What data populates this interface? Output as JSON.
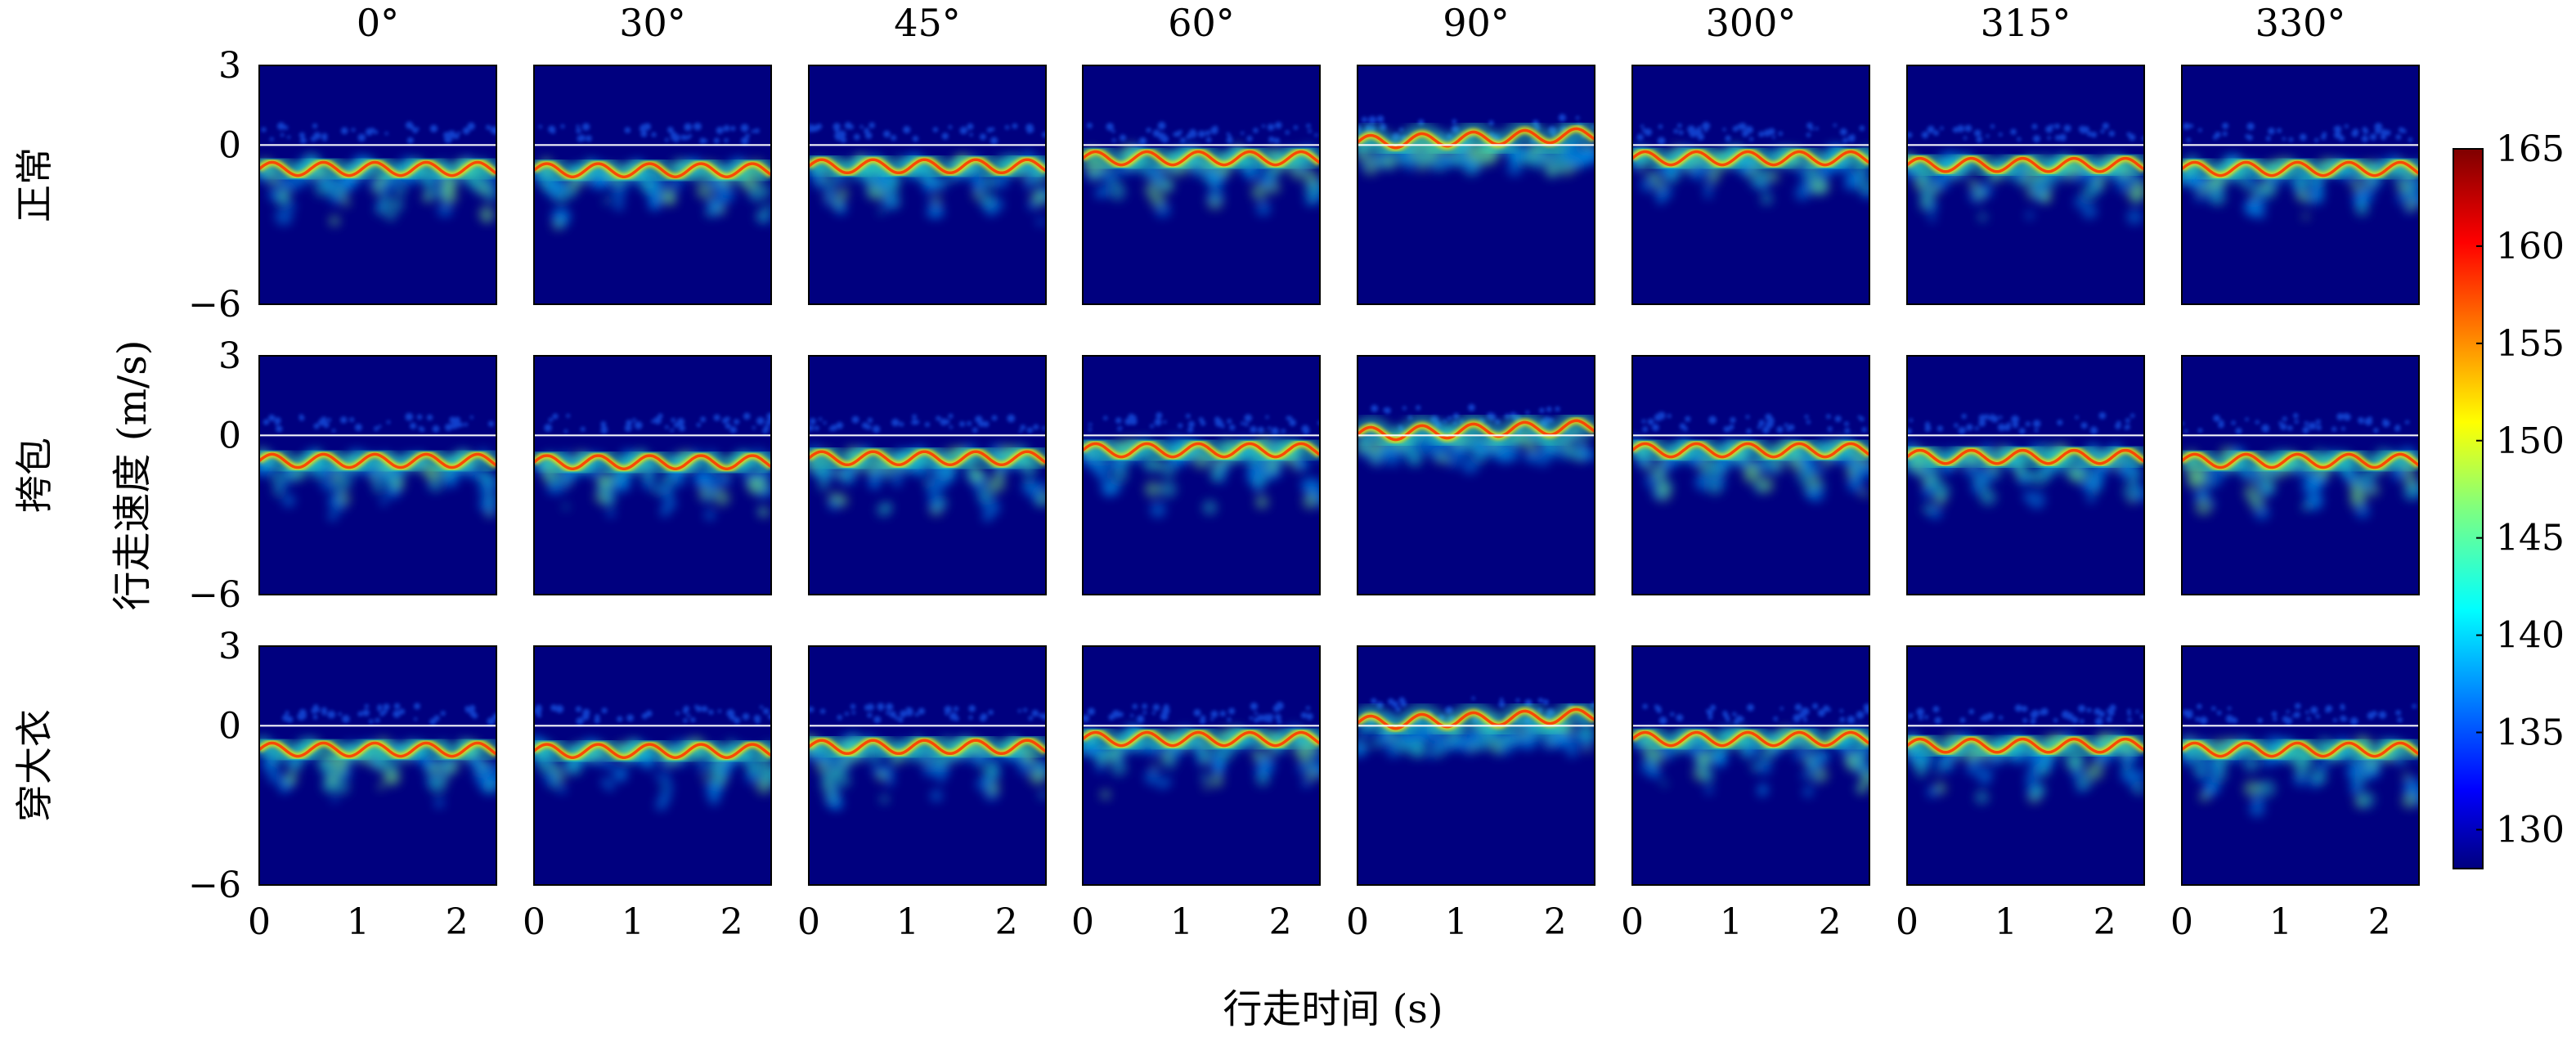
{
  "chart_data": {
    "type": "heatmap",
    "description_kind": "micro-Doppler spectrogram grid",
    "column_titles": [
      "0°",
      "30°",
      "45°",
      "60°",
      "90°",
      "300°",
      "315°",
      "330°"
    ],
    "row_titles": [
      "正常",
      "挎包",
      "穿大衣"
    ],
    "xlabel": "行走时间 (s)",
    "ylabel": "行走速度 (m/s)",
    "xlim": [
      0,
      2.4
    ],
    "ylim": [
      -6,
      3
    ],
    "x_ticks": [
      "0",
      "1",
      "2"
    ],
    "y_ticks": [
      "3",
      "0",
      "−6"
    ],
    "colorbar": {
      "min": 128,
      "max": 165,
      "ticks": [
        "130",
        "135",
        "140",
        "145",
        "150",
        "155",
        "160",
        "165"
      ],
      "colormap": "jet"
    },
    "series_summary": {
      "row_offsets_ms": [
        -0.9,
        -1.1,
        -0.9
      ],
      "angle_dominant_velocity_ms": [
        -0.9,
        -0.95,
        -0.8,
        -0.5,
        0.1,
        -0.5,
        -0.75,
        -0.9
      ],
      "gait_period_s": 0.52
    }
  },
  "colors": {
    "background_field": "#00007f",
    "zero_line": "#ffffff",
    "frame": "#000000"
  }
}
